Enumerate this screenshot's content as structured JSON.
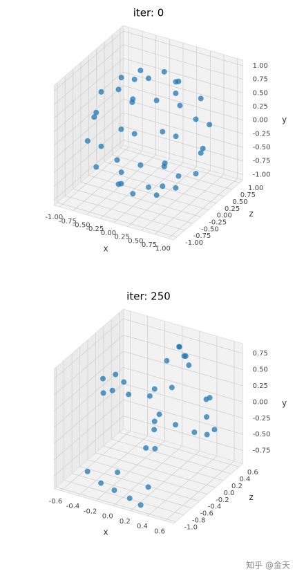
{
  "chart_data": [
    {
      "type": "scatter3d",
      "title": "iter: 0",
      "xlabel": "x",
      "ylabel": "y",
      "zlabel": "z",
      "color": "#1f77b4",
      "xlim": [
        -1.1,
        1.1
      ],
      "ylim": [
        -1.1,
        1.1
      ],
      "zlim": [
        -1.1,
        1.1
      ],
      "xticks": [
        {
          "value": -1,
          "label": "-1.00"
        },
        {
          "value": -0.75,
          "label": "-0.75"
        },
        {
          "value": -0.5,
          "label": "-0.50"
        },
        {
          "value": -0.25,
          "label": "-0.25"
        },
        {
          "value": 0,
          "label": "0.00"
        },
        {
          "value": 0.25,
          "label": "0.25"
        },
        {
          "value": 0.5,
          "label": "0.50"
        },
        {
          "value": 0.75,
          "label": "0.75"
        },
        {
          "value": 1,
          "label": "1.00"
        }
      ],
      "yticks": [
        {
          "value": -1,
          "label": "-1.00"
        },
        {
          "value": -0.75,
          "label": "-0.75"
        },
        {
          "value": -0.5,
          "label": "-0.50"
        },
        {
          "value": -0.25,
          "label": "-0.25"
        },
        {
          "value": 0,
          "label": "0.00"
        },
        {
          "value": 0.25,
          "label": "0.25"
        },
        {
          "value": 0.5,
          "label": "0.50"
        },
        {
          "value": 0.75,
          "label": "0.75"
        },
        {
          "value": 1,
          "label": "1.00"
        }
      ],
      "zticks": [
        {
          "value": -1,
          "label": "-1.00"
        },
        {
          "value": -0.75,
          "label": "-0.75"
        },
        {
          "value": -0.5,
          "label": "-0.50"
        },
        {
          "value": -0.25,
          "label": "-0.25"
        },
        {
          "value": 0,
          "label": "0.00"
        },
        {
          "value": 0.25,
          "label": "0.25"
        },
        {
          "value": 0.5,
          "label": "0.50"
        },
        {
          "value": 0.75,
          "label": "0.75"
        },
        {
          "value": 1,
          "label": "1.00"
        }
      ],
      "points": {
        "x": [
          1,
          0.71,
          0,
          -0.71,
          -1,
          -0.71,
          0,
          0.71,
          0.87,
          0.61,
          0,
          -0.61,
          -0.87,
          -0.61,
          0,
          0.61,
          0.87,
          0.61,
          0,
          -0.61,
          -0.87,
          -0.61,
          0,
          0.61,
          0.5,
          0.35,
          0,
          -0.35,
          -0.5,
          -0.35,
          0,
          0.35,
          0.5,
          0.35,
          0,
          -0.35,
          -0.5,
          -0.35,
          0,
          0.35,
          0,
          0
        ],
        "y": [
          0,
          0,
          0,
          0,
          0,
          0,
          0,
          0,
          0.5,
          0.5,
          0.5,
          0.5,
          0.5,
          0.5,
          0.5,
          0.5,
          -0.5,
          -0.5,
          -0.5,
          -0.5,
          -0.5,
          -0.5,
          -0.5,
          -0.5,
          0.87,
          0.87,
          0.87,
          0.87,
          0.87,
          0.87,
          0.87,
          0.87,
          -0.87,
          -0.87,
          -0.87,
          -0.87,
          -0.87,
          -0.87,
          -0.87,
          -0.87,
          1,
          -1
        ],
        "z": [
          0,
          0.71,
          1,
          0.71,
          0,
          -0.71,
          -1,
          -0.71,
          0,
          0.61,
          0.87,
          0.61,
          0,
          -0.61,
          -0.87,
          -0.61,
          0,
          0.61,
          0.87,
          0.61,
          0,
          -0.61,
          -0.87,
          -0.61,
          0,
          0.35,
          0.5,
          0.35,
          0,
          -0.35,
          -0.5,
          -0.35,
          0,
          0.35,
          0.5,
          0.35,
          0,
          -0.35,
          -0.5,
          -0.35,
          0,
          0
        ]
      }
    },
    {
      "type": "scatter3d",
      "title": "iter: 250",
      "xlabel": "x",
      "ylabel": "y",
      "zlabel": "z",
      "color": "#1f77b4",
      "xlim": [
        -0.68,
        0.7
      ],
      "ylim": [
        -0.95,
        0.9
      ],
      "zlim": [
        -1.05,
        0.7
      ],
      "xticks": [
        -0.6,
        -0.4,
        -0.2,
        {
          "value": 0,
          "label": "0.0"
        },
        0.2,
        0.4,
        0.6
      ],
      "yticks": [
        -0.75,
        {
          "value": -0.5,
          "label": "-0.50"
        },
        -0.25,
        {
          "value": 0,
          "label": "0.00"
        },
        0.25,
        {
          "value": 0.5,
          "label": "0.50"
        },
        0.75
      ],
      "zticks": [
        {
          "value": -1,
          "label": "-1.0"
        },
        -0.8,
        -0.6,
        -0.4,
        -0.2,
        {
          "value": 0,
          "label": "0.0"
        },
        0.2,
        0.4,
        0.6
      ],
      "points": {
        "x": [
          0.15,
          0.25,
          0.35,
          0.1,
          0.2,
          0.05,
          -0.55,
          -0.45,
          -0.5,
          -0.4,
          -0.35,
          -0.3,
          0.55,
          0.6,
          0.65,
          0.5,
          0.6,
          0.55,
          0,
          -0.1,
          0.1,
          0,
          -0.05,
          0.05,
          -0.1,
          0.15,
          0.2,
          -0.5,
          -0.3,
          -0.1,
          0.1,
          0.25,
          -0.2,
          0.2
        ],
        "y": [
          0.85,
          0.8,
          0.75,
          0.78,
          0.7,
          0.65,
          0.3,
          0.35,
          0.15,
          0.2,
          0.3,
          0.1,
          0.3,
          0.1,
          -0.1,
          0.2,
          -0.2,
          -0.05,
          0.3,
          0.1,
          0,
          -0.2,
          -0.4,
          -0.55,
          -0.65,
          -0.3,
          0.4,
          -0.85,
          -0.9,
          -0.88,
          -0.9,
          -0.92,
          -0.8,
          -0.82
        ],
        "z": [
          0.3,
          0.2,
          0.1,
          0.4,
          0.35,
          0.2,
          -0.1,
          0,
          -0.2,
          0.1,
          -0.3,
          0,
          0.1,
          0,
          -0.1,
          0.3,
          0.2,
          -0.2,
          0,
          0.1,
          -0.1,
          0,
          0.1,
          -0.1,
          0,
          0.2,
          0,
          -0.6,
          -0.7,
          -0.8,
          -0.85,
          -0.9,
          -0.5,
          -0.6
        ]
      }
    }
  ],
  "watermark": "知乎 @金天"
}
